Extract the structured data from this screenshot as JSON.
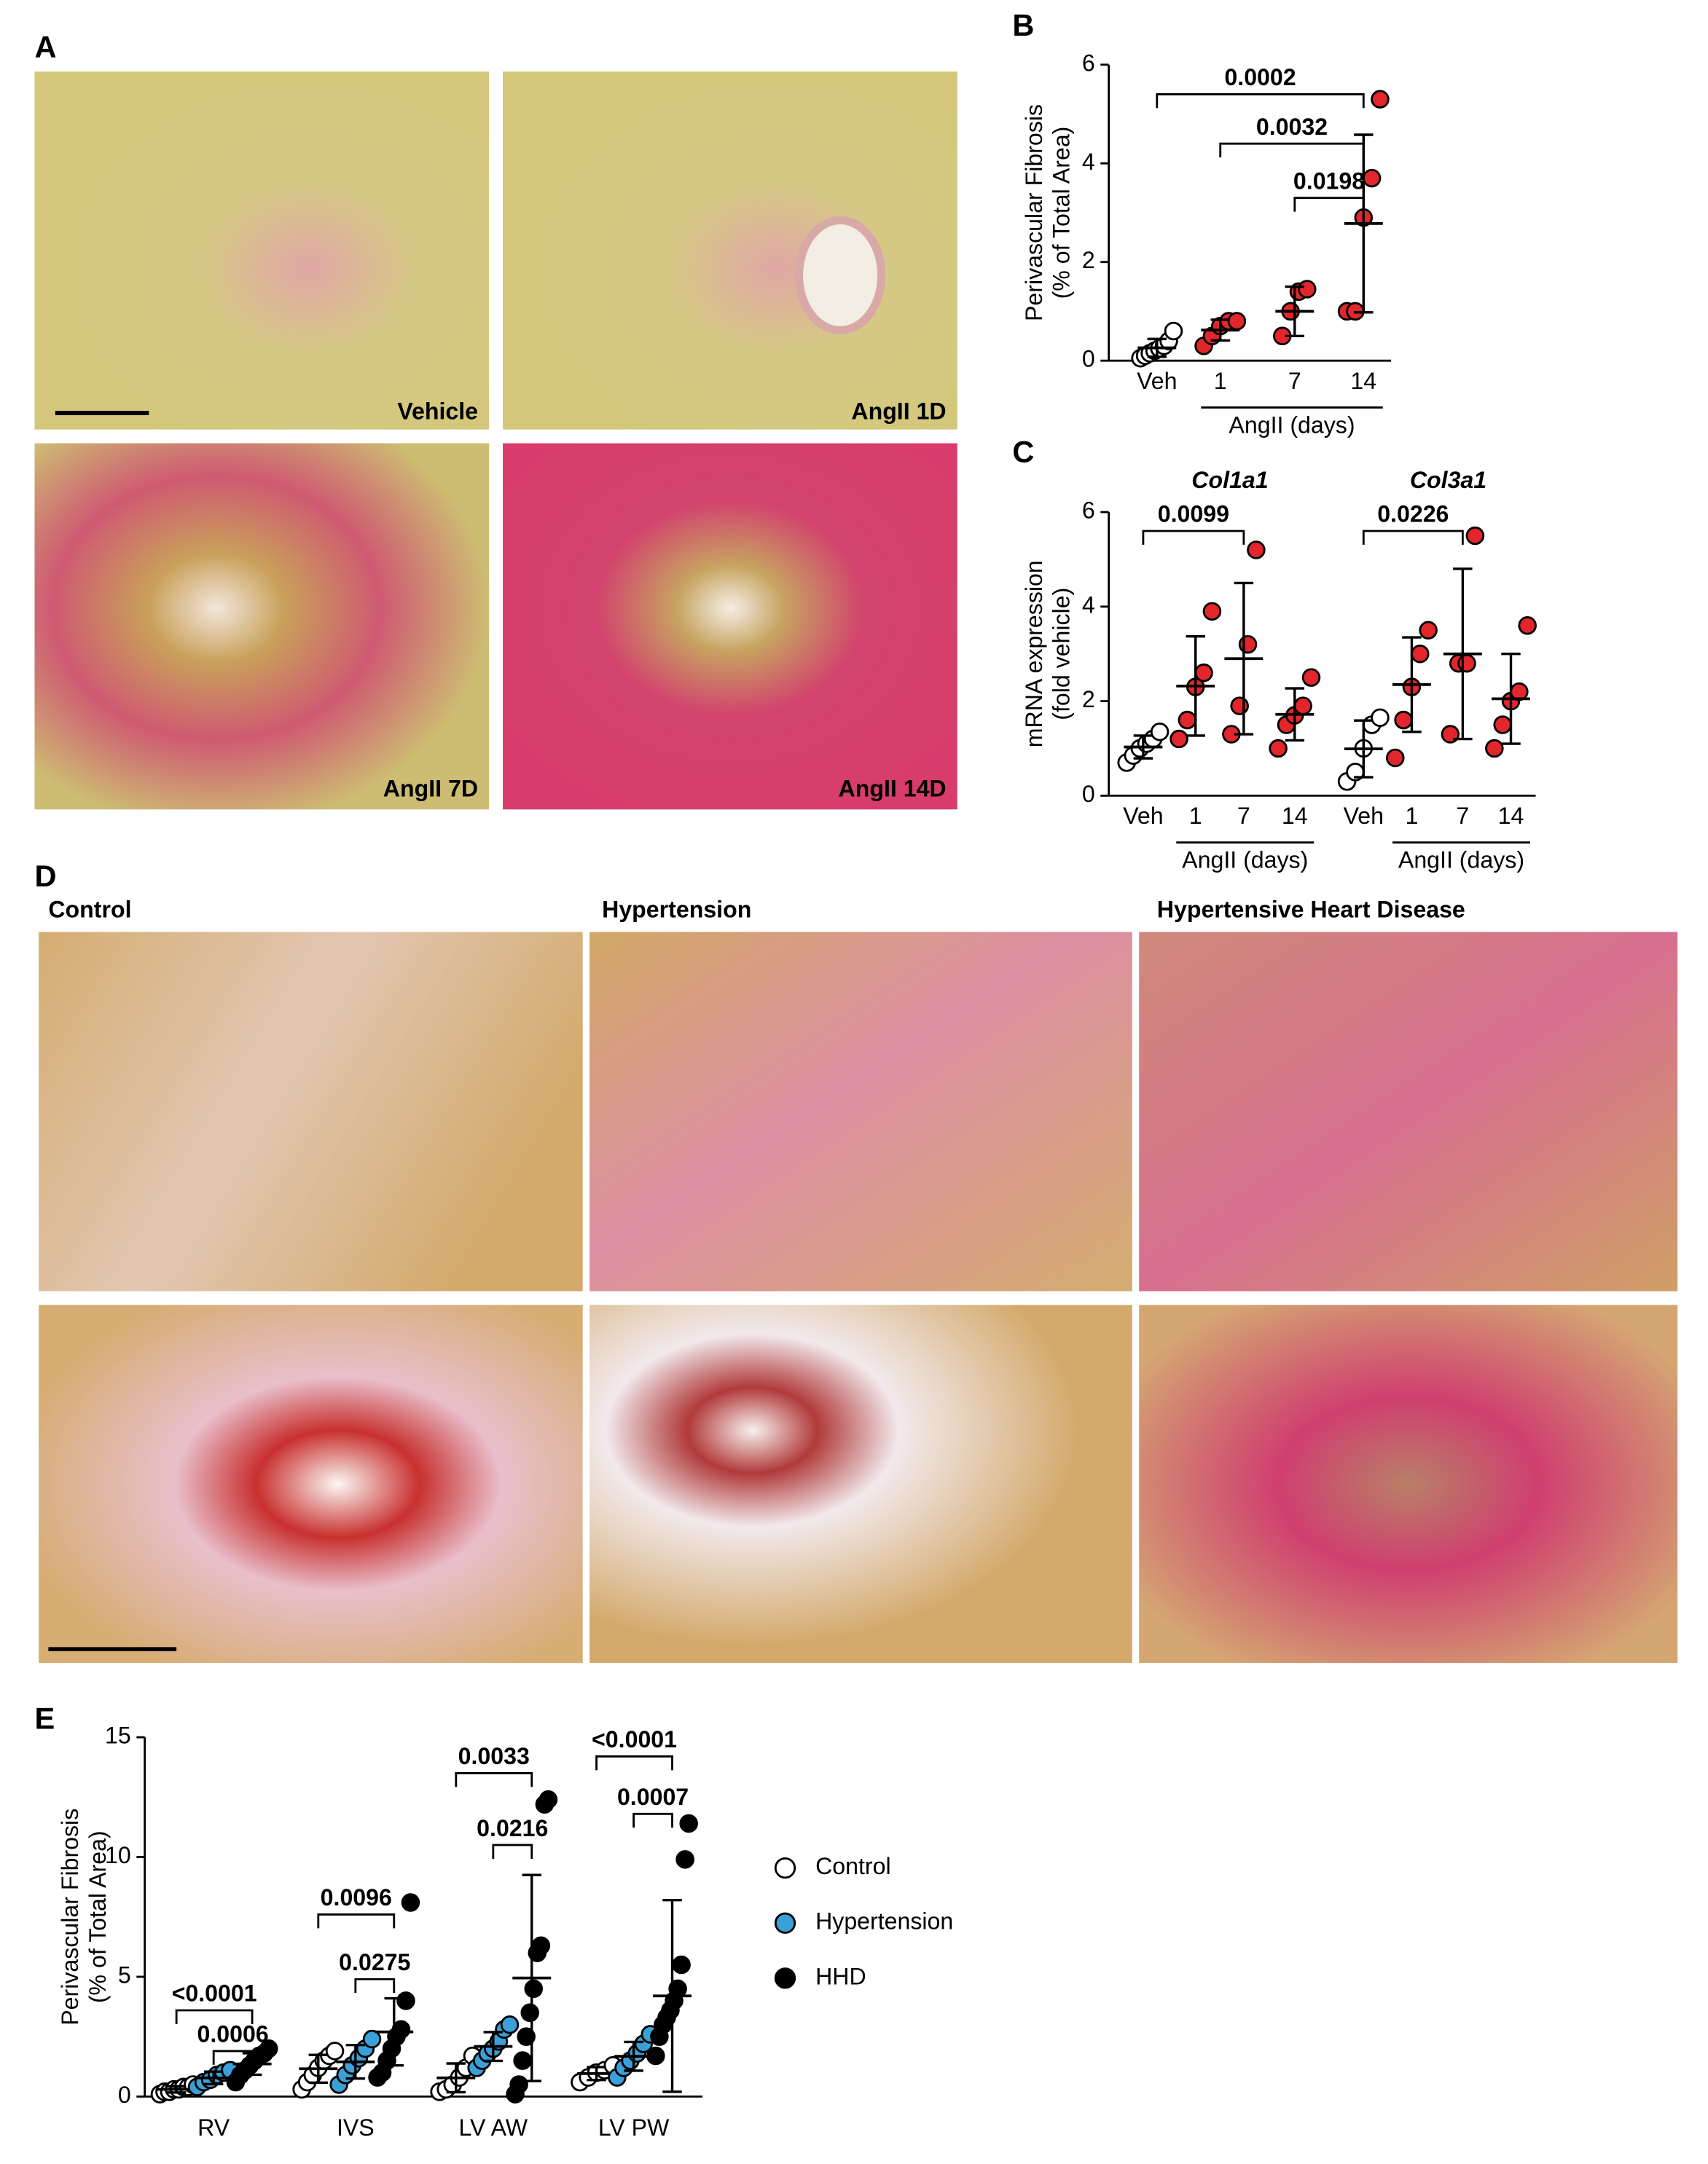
{
  "panels": {
    "A": "A",
    "D": "D"
  },
  "panel_a": {
    "labels": [
      "Vehicle",
      "AngII 1D",
      "AngII 7D",
      "AngII 14D"
    ]
  },
  "panel_d": {
    "headers": [
      "Control",
      "Hypertension",
      "Hypertensive Heart Disease"
    ]
  },
  "chart_data": [
    {
      "type": "dot",
      "panel": "B",
      "ylabel": [
        "Perivascular Fibrosis",
        "(% of Total Area)"
      ],
      "ylim": [
        0,
        6
      ],
      "yticks": [
        0,
        2,
        4,
        6
      ],
      "groups": [
        {
          "categories": [
            "Veh",
            "1",
            "7",
            "14"
          ],
          "colors": [
            "#ffffff",
            "#e3262b",
            "#e3262b",
            "#e3262b"
          ],
          "group_label": "AngII (days)",
          "points": [
            [
              0.05,
              0.1,
              0.15,
              0.2,
              0.25,
              0.3,
              0.4,
              0.6
            ],
            [
              0.3,
              0.5,
              0.7,
              0.8,
              0.8
            ],
            [
              0.5,
              1.0,
              1.4,
              1.45
            ],
            [
              1.0,
              1.0,
              2.9,
              3.7,
              5.3
            ]
          ],
          "means": [
            0.26,
            0.62,
            1.0,
            2.78
          ],
          "sd": [
            0.18,
            0.21,
            0.5,
            1.8
          ],
          "brackets": [
            {
              "from": "Veh",
              "to": "14",
              "y": 5.4,
              "label": "0.0002"
            },
            {
              "from": "1",
              "to": "14",
              "y": 4.4,
              "label": "0.0032"
            },
            {
              "from": "7",
              "to": "14",
              "y": 3.3,
              "label": "0.0198"
            }
          ]
        }
      ]
    },
    {
      "type": "dot",
      "panel": "C",
      "ylabel": [
        "mRNA expression",
        "(fold vehicle)"
      ],
      "ylim": [
        0,
        6
      ],
      "yticks": [
        0,
        2,
        4,
        6
      ],
      "groups": [
        {
          "title": "Col1a1",
          "categories": [
            "Veh",
            "1",
            "7",
            "14"
          ],
          "colors": [
            "#ffffff",
            "#e3262b",
            "#e3262b",
            "#e3262b"
          ],
          "group_label": "AngII (days)",
          "points": [
            [
              0.7,
              0.85,
              1.0,
              1.1,
              1.2,
              1.35
            ],
            [
              1.2,
              1.6,
              2.3,
              2.6,
              3.9
            ],
            [
              1.3,
              1.9,
              3.2,
              5.2
            ],
            [
              1.0,
              1.5,
              1.7,
              1.9,
              2.5
            ]
          ],
          "means": [
            1.03,
            2.32,
            2.9,
            1.72
          ],
          "sd": [
            0.24,
            1.05,
            1.6,
            0.55
          ],
          "brackets": [
            {
              "from": "Veh",
              "to": "7",
              "y": 5.6,
              "label": "0.0099"
            }
          ]
        },
        {
          "title": "Col3a1",
          "categories": [
            "Veh",
            "1",
            "7",
            "14"
          ],
          "colors": [
            "#ffffff",
            "#e3262b",
            "#e3262b",
            "#e3262b"
          ],
          "group_label": "AngII (days)",
          "points": [
            [
              0.3,
              0.5,
              1.0,
              1.5,
              1.65
            ],
            [
              0.8,
              1.6,
              2.3,
              3.0,
              3.5
            ],
            [
              1.3,
              2.8,
              2.8,
              5.5
            ],
            [
              1.0,
              1.5,
              2.0,
              2.2,
              3.6
            ]
          ],
          "means": [
            0.99,
            2.35,
            3.0,
            2.05
          ],
          "sd": [
            0.6,
            1.0,
            1.8,
            0.95
          ],
          "brackets": [
            {
              "from": "Veh",
              "to": "7",
              "y": 5.6,
              "label": "0.0226"
            }
          ]
        }
      ]
    },
    {
      "type": "grouped_dot",
      "panel": "E",
      "ylabel": [
        "Perivascular Fibrosis",
        "(% of Total Area)"
      ],
      "ylim": [
        0,
        15
      ],
      "yticks": [
        0,
        5,
        10,
        15
      ],
      "categories": [
        "RV",
        "IVS",
        "LV AW",
        "LV PW"
      ],
      "series": [
        {
          "name": "Control",
          "color": "#ffffff",
          "points": [
            [
              0.1,
              0.2,
              0.2,
              0.3,
              0.3,
              0.4,
              0.4,
              0.5
            ],
            [
              0.3,
              0.6,
              0.9,
              1.2,
              1.5,
              1.7,
              1.9
            ],
            [
              0.2,
              0.3,
              0.5,
              0.8,
              1.2,
              1.7
            ],
            [
              0.6,
              0.8,
              1.0,
              1.1,
              1.3
            ]
          ],
          "means": [
            0.3,
            1.16,
            0.78,
            0.96
          ],
          "sd": [
            0.13,
            0.58,
            0.6,
            0.27
          ]
        },
        {
          "name": "Hypertension",
          "color": "#3aa0d8",
          "points": [
            [
              0.4,
              0.6,
              0.7,
              0.9,
              1.0,
              1.1
            ],
            [
              0.5,
              0.9,
              1.3,
              1.6,
              2.0,
              2.4
            ],
            [
              1.2,
              1.5,
              1.8,
              2.0,
              2.3,
              2.8,
              3.0
            ],
            [
              0.8,
              1.2,
              1.5,
              1.8,
              2.2,
              2.6
            ]
          ],
          "means": [
            0.78,
            1.45,
            2.09,
            1.68
          ],
          "sd": [
            0.26,
            0.7,
            0.6,
            0.6
          ]
        },
        {
          "name": "HHD",
          "color": "#000000",
          "points": [
            [
              0.6,
              0.9,
              1.1,
              1.3,
              1.5,
              1.7,
              1.8,
              2.0
            ],
            [
              0.8,
              1.0,
              1.5,
              2.0,
              2.5,
              2.8,
              4.0,
              8.1
            ],
            [
              0.1,
              0.5,
              1.5,
              2.5,
              3.5,
              4.5,
              6.0,
              6.3,
              12.2,
              12.4
            ],
            [
              1.7,
              2.5,
              3.0,
              3.3,
              3.6,
              4.0,
              4.5,
              5.5,
              9.9,
              11.4
            ]
          ],
          "means": [
            1.36,
            2.7,
            4.95,
            4.2
          ],
          "sd": [
            0.45,
            1.4,
            4.3,
            4.0
          ]
        }
      ],
      "brackets": [
        {
          "category": "RV",
          "from": "Control",
          "to": "HHD",
          "y": 3.6,
          "label": "<0.0001"
        },
        {
          "category": "RV",
          "from": "Hypertension",
          "to": "HHD",
          "y": 1.9,
          "label": "0.0006"
        },
        {
          "category": "IVS",
          "from": "Control",
          "to": "HHD",
          "y": 7.6,
          "label": "0.0096"
        },
        {
          "category": "IVS",
          "from": "Hypertension",
          "to": "HHD",
          "y": 4.9,
          "label": "0.0275"
        },
        {
          "category": "LV AW",
          "from": "Control",
          "to": "HHD",
          "y": 13.5,
          "label": "0.0033"
        },
        {
          "category": "LV AW",
          "from": "Hypertension",
          "to": "HHD",
          "y": 10.5,
          "label": "0.0216"
        },
        {
          "category": "LV PW",
          "from": "Control",
          "to": "HHD",
          "y": 14.2,
          "label": "<0.0001"
        },
        {
          "category": "LV PW",
          "from": "Hypertension",
          "to": "HHD",
          "y": 11.8,
          "label": "0.0007"
        }
      ]
    }
  ]
}
